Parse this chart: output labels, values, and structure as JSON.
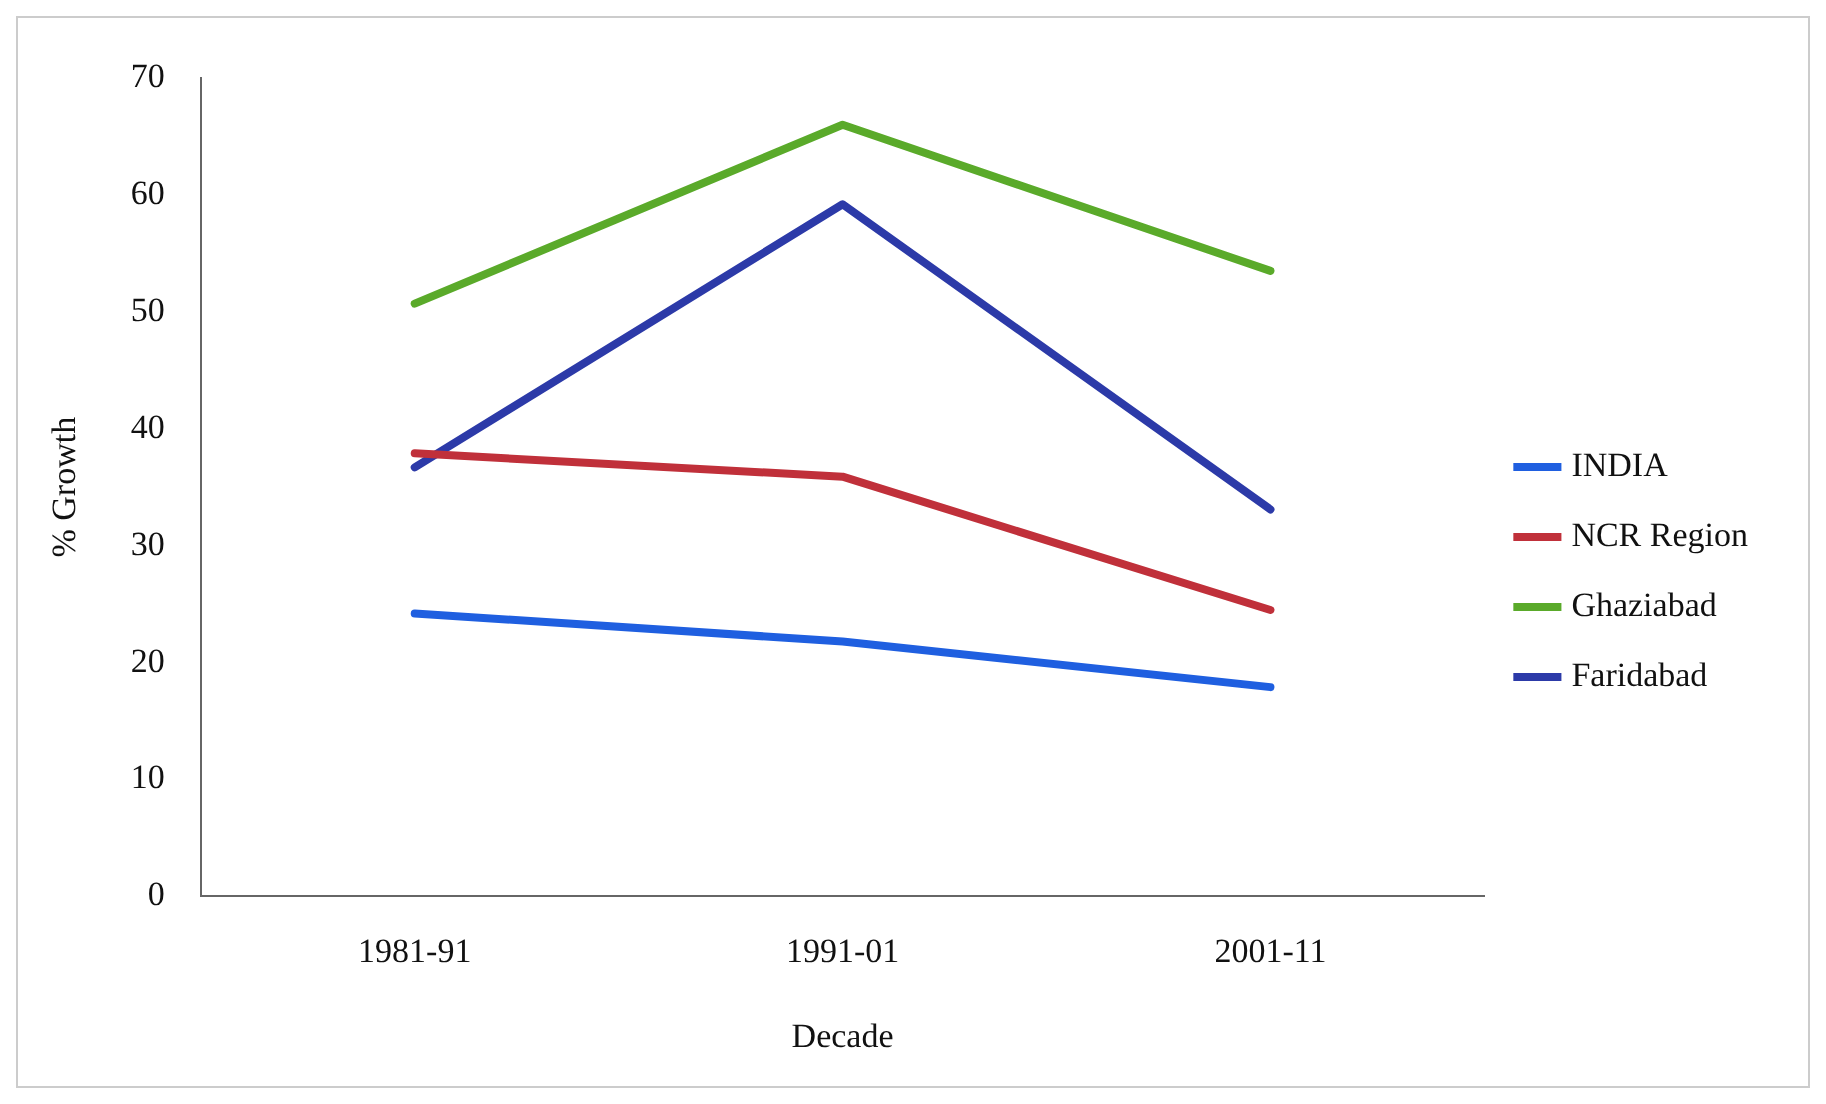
{
  "chart_data": {
    "type": "line",
    "xlabel": "Decade",
    "ylabel": "% Growth",
    "categories": [
      "1981-91",
      "1991-01",
      "2001-11"
    ],
    "series": [
      {
        "name": "INDIA",
        "color": "#1f5fe0",
        "values": [
          24.2,
          21.8,
          17.9
        ]
      },
      {
        "name": "NCR Region",
        "color": "#c0303a",
        "values": [
          37.9,
          35.9,
          24.5
        ]
      },
      {
        "name": "Ghaziabad",
        "color": "#5aaa2a",
        "values": [
          50.7,
          66.0,
          53.5
        ]
      },
      {
        "name": "Faridabad",
        "color": "#2c3aa8",
        "values": [
          36.7,
          59.2,
          33.1
        ]
      }
    ],
    "ylim": [
      0,
      70
    ],
    "yticks": [
      0,
      10,
      20,
      30,
      40,
      50,
      60,
      70
    ],
    "grid": false,
    "legend": "right",
    "marker": "none",
    "line_style": "solid"
  }
}
